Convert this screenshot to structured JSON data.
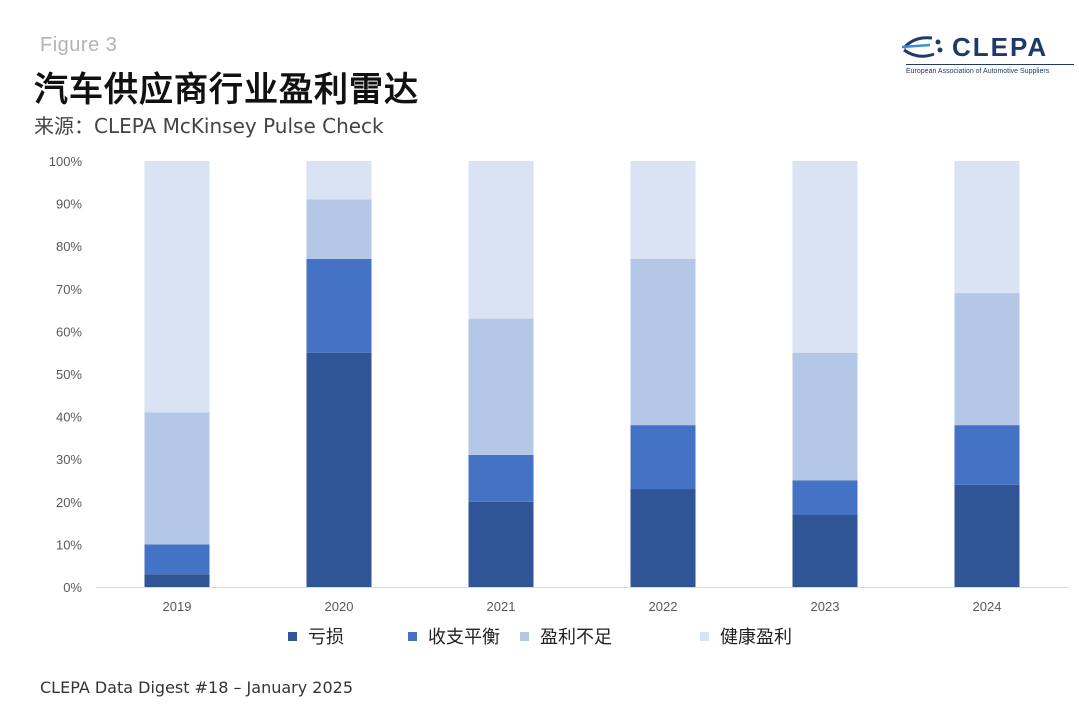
{
  "header": {
    "figure_label": "Figure 3",
    "title": "汽车供应商行业盈利雷达",
    "source": "来源：CLEPA McKinsey Pulse Check"
  },
  "logo": {
    "wordmark": "CLEPA",
    "tagline": "European Association of Automotive Suppliers"
  },
  "footer": {
    "text": "CLEPA Data Digest #18 – January 2025"
  },
  "chart_data": {
    "type": "bar",
    "stacked": true,
    "categories": [
      "2019",
      "2020",
      "2021",
      "2022",
      "2023",
      "2024"
    ],
    "series": [
      {
        "name": "亏损",
        "color": "#2f5597",
        "values": [
          3,
          55,
          20,
          23,
          17,
          24
        ]
      },
      {
        "name": "收支平衡",
        "color": "#4472c4",
        "values": [
          7,
          22,
          11,
          15,
          8,
          14
        ]
      },
      {
        "name": "盈利不足",
        "color": "#b4c7e7",
        "values": [
          31,
          14,
          32,
          39,
          30,
          31
        ]
      },
      {
        "name": "健康盈利",
        "color": "#dae3f3",
        "values": [
          59,
          9,
          37,
          23,
          45,
          31
        ]
      }
    ],
    "yticks": [
      "0%",
      "10%",
      "20%",
      "30%",
      "40%",
      "50%",
      "60%",
      "70%",
      "80%",
      "90%",
      "100%"
    ],
    "ylim": [
      0,
      100
    ],
    "grid": false,
    "legend": "bottom"
  }
}
